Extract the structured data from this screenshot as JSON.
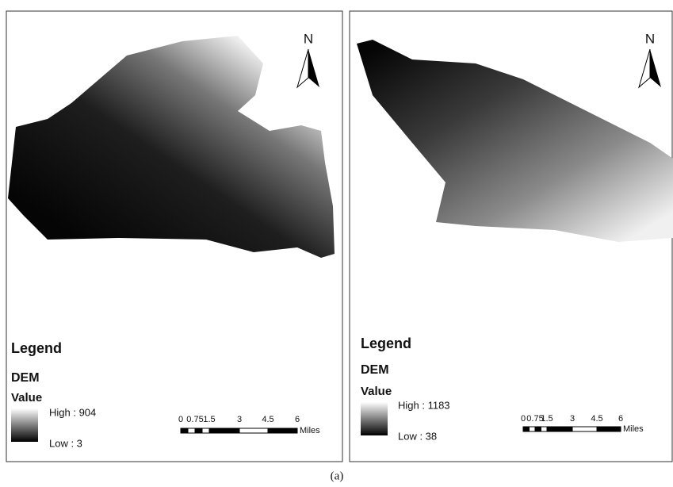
{
  "panels": [
    {
      "north": "N",
      "legend_title": "Legend",
      "layer": "DEM",
      "field": "Value",
      "high": "High : 904",
      "low": "Low : 3",
      "scale_labels": [
        "0",
        "0.75",
        "1.5",
        "3",
        "4.5",
        "6"
      ],
      "scale_unit": "Miles"
    },
    {
      "north": "N",
      "legend_title": "Legend",
      "layer": "DEM",
      "field": "Value",
      "high": "High : 1183",
      "low": "Low : 38",
      "scale_labels": [
        "0",
        "0.75",
        "1.5",
        "3",
        "4.5",
        "6"
      ],
      "scale_unit": "Miles"
    }
  ],
  "caption": "(a)"
}
